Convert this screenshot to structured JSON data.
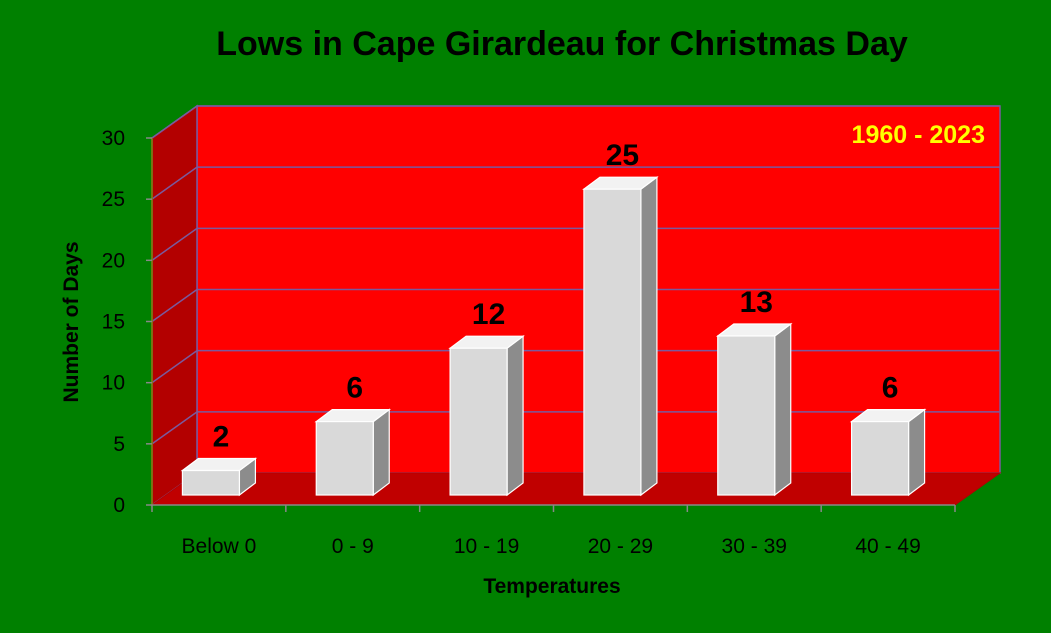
{
  "colors": {
    "background": "#008000",
    "back_wall": "#ff0000",
    "side_wall": "#b30000",
    "floor": "#c00000",
    "gridline": "#7a5a9e",
    "bar_front": "#d9d9d9",
    "bar_top": "#f2f2f2",
    "bar_side": "#8c8c8c",
    "annotation": "#ffff00"
  },
  "chart_data": {
    "type": "bar",
    "title": "Lows in Cape Girardeau for Christmas Day",
    "annotation": "1960 - 2023",
    "xlabel": "Temperatures",
    "ylabel": "Number of Days",
    "categories": [
      "Below 0",
      "0 - 9",
      "10 - 19",
      "20 - 29",
      "30 - 39",
      "40 - 49"
    ],
    "values": [
      2,
      6,
      12,
      25,
      13,
      6
    ],
    "ylim": [
      0,
      30
    ],
    "yticks": [
      0,
      5,
      10,
      15,
      20,
      25,
      30
    ],
    "grid": true,
    "style": "3d-column"
  }
}
